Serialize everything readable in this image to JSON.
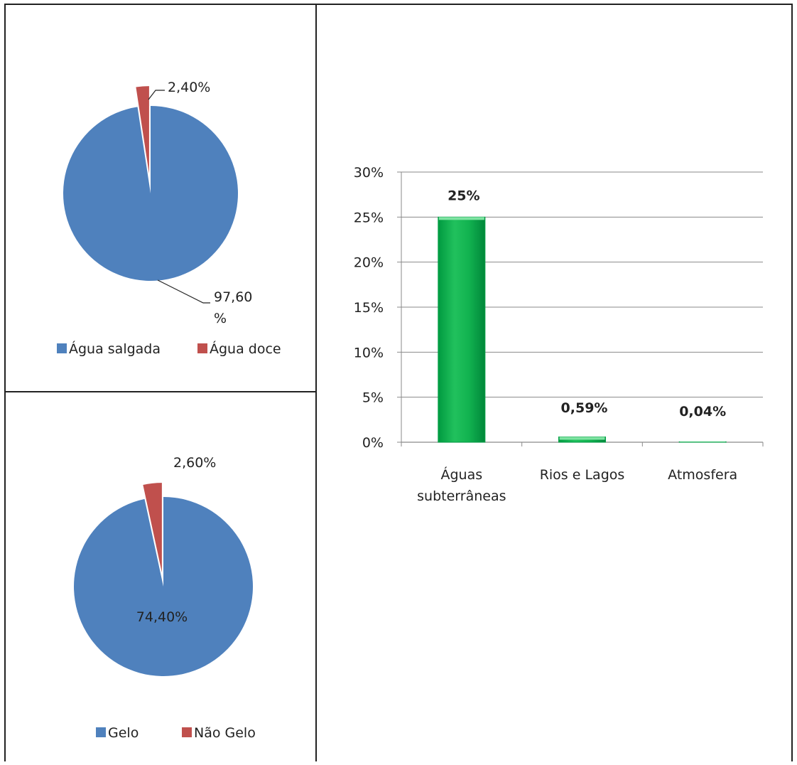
{
  "chart_data": [
    {
      "type": "pie",
      "slices": [
        {
          "label": "Água salgada",
          "value": 97.6,
          "data_label": "97,60\n%",
          "color": "#4f81bd"
        },
        {
          "label": "Água doce",
          "value": 2.4,
          "data_label": "2,40%",
          "color": "#c0504d"
        }
      ],
      "legend": [
        "Água salgada",
        "Água doce"
      ],
      "legend_position": "bottom",
      "exploded_slice": "Água doce"
    },
    {
      "type": "pie",
      "slices": [
        {
          "label": "Gelo",
          "value": 74.4,
          "data_label": "74,40%",
          "color": "#4f81bd"
        },
        {
          "label": "Não Gelo",
          "value": 2.6,
          "data_label": "2,60%",
          "color": "#c0504d"
        }
      ],
      "legend": [
        "Gelo",
        "Não Gelo"
      ],
      "legend_position": "bottom",
      "exploded_slice": "Não Gelo"
    },
    {
      "type": "bar",
      "categories": [
        "Águas\nsubterrâneas",
        "Rios e Lagos",
        "Atmosfera"
      ],
      "values": [
        25,
        0.59,
        0.04
      ],
      "data_labels": [
        "25%",
        "0,59%",
        "0,04%"
      ],
      "yticks": [
        "0%",
        "5%",
        "10%",
        "15%",
        "20%",
        "25%",
        "30%"
      ],
      "ylim": [
        0,
        30
      ],
      "grid": true,
      "bar_color": "#00b050"
    }
  ]
}
